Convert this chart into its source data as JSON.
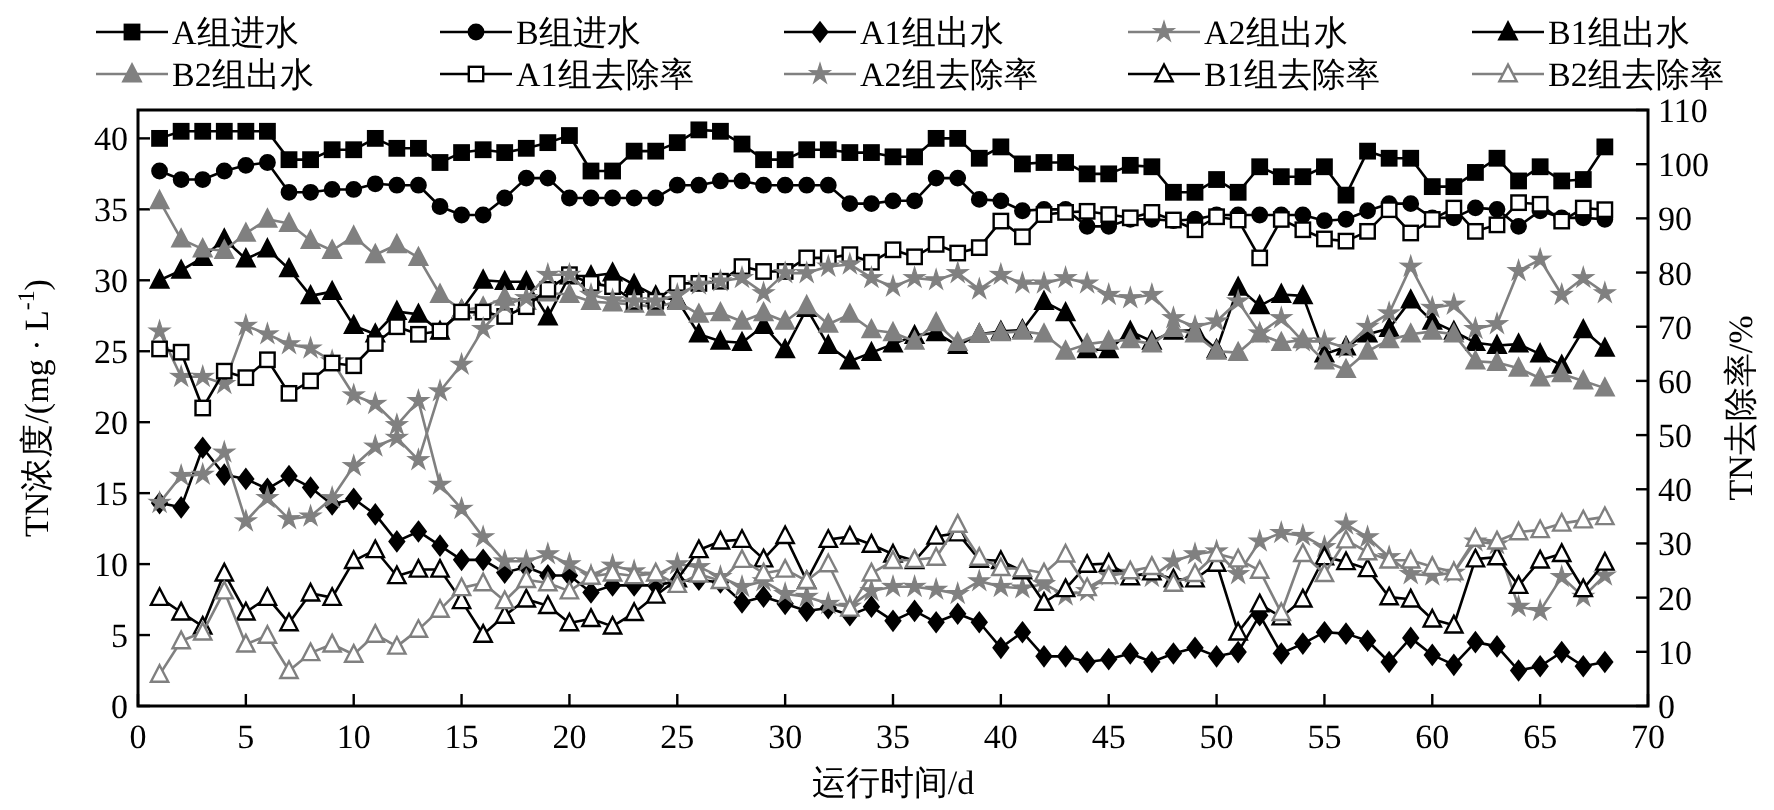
{
  "chart_data": {
    "type": "line",
    "xlabel": "运行时间/d",
    "ylabel": "TN浓度/(mg · L$^{-1}$)",
    "y2label": "TN去除率/%",
    "xlim": [
      0,
      70
    ],
    "xticks": [
      0,
      5,
      10,
      15,
      20,
      25,
      30,
      35,
      40,
      45,
      50,
      55,
      60,
      65,
      70
    ],
    "ylim": [
      0,
      42
    ],
    "yticks": [
      0,
      5,
      10,
      15,
      20,
      25,
      30,
      35,
      40
    ],
    "y2lim": [
      0,
      110
    ],
    "y2ticks": [
      0,
      10,
      20,
      30,
      40,
      50,
      60,
      70,
      80,
      90,
      100,
      110
    ],
    "legend": "top",
    "x": [
      1,
      2,
      3,
      4,
      5,
      6,
      7,
      8,
      9,
      10,
      11,
      12,
      13,
      14,
      15,
      16,
      17,
      18,
      19,
      20,
      21,
      22,
      23,
      24,
      25,
      26,
      27,
      28,
      29,
      30,
      31,
      32,
      33,
      34,
      35,
      36,
      37,
      38,
      39,
      40,
      41,
      42,
      43,
      44,
      45,
      46,
      47,
      48,
      49,
      50,
      51,
      52,
      53,
      54,
      55,
      56,
      57,
      58,
      59,
      60,
      61,
      62,
      63,
      64,
      65,
      66,
      67,
      68
    ],
    "series": [
      {
        "name": "A组进水",
        "color": "#000000",
        "marker": "square",
        "values": [
          40.0,
          40.5,
          40.5,
          40.5,
          40.5,
          40.5,
          38.5,
          38.5,
          39.2,
          39.2,
          40.0,
          39.3,
          39.3,
          38.3,
          39.0,
          39.2,
          39.0,
          39.3,
          39.7,
          40.2,
          37.7,
          37.7,
          39.1,
          39.1,
          39.7,
          40.6,
          40.5,
          39.6,
          38.5,
          38.5,
          39.2,
          39.2,
          39.0,
          39.0,
          38.7,
          38.7,
          40.0,
          40.0,
          38.6,
          39.4,
          38.2,
          38.3,
          38.3,
          37.5,
          37.5,
          38.1,
          38.0,
          36.2,
          36.2,
          37.1,
          36.2,
          38.0,
          37.3,
          37.3,
          38.0,
          36.0,
          39.1,
          38.6,
          38.6,
          36.6,
          36.6,
          37.6,
          38.6,
          37.0,
          38.0,
          37.0,
          37.1,
          39.4
        ]
      },
      {
        "name": "B组进水",
        "color": "#000000",
        "marker": "circle",
        "values": [
          37.7,
          37.1,
          37.1,
          37.7,
          38.1,
          38.3,
          36.2,
          36.2,
          36.4,
          36.4,
          36.8,
          36.7,
          36.7,
          35.2,
          34.6,
          34.6,
          35.8,
          37.2,
          37.2,
          35.8,
          35.8,
          35.8,
          35.8,
          35.8,
          36.7,
          36.7,
          37.0,
          37.0,
          36.7,
          36.7,
          36.7,
          36.7,
          35.4,
          35.4,
          35.6,
          35.6,
          37.2,
          37.2,
          35.7,
          35.6,
          34.9,
          35.0,
          35.0,
          33.8,
          33.8,
          34.3,
          34.3,
          34.2,
          34.3,
          34.6,
          34.6,
          34.6,
          34.6,
          34.6,
          34.2,
          34.3,
          34.9,
          35.4,
          35.4,
          34.4,
          34.4,
          35.1,
          35.0,
          33.8,
          34.9,
          34.4,
          34.4,
          34.3
        ]
      },
      {
        "name": "A1组出水",
        "color": "#000000",
        "marker": "diamond",
        "values": [
          14.3,
          14.0,
          18.2,
          16.3,
          16.0,
          15.3,
          16.2,
          15.4,
          14.2,
          14.6,
          13.5,
          11.6,
          12.3,
          11.3,
          10.3,
          10.3,
          9.4,
          9.8,
          9.2,
          9.2,
          8.0,
          8.5,
          8.5,
          8.5,
          8.8,
          8.9,
          8.7,
          7.3,
          7.7,
          7.2,
          6.7,
          6.9,
          6.4,
          7.0,
          6.0,
          6.7,
          5.9,
          6.5,
          5.9,
          4.1,
          5.2,
          3.5,
          3.5,
          3.1,
          3.3,
          3.7,
          3.1,
          3.7,
          4.1,
          3.5,
          3.8,
          6.4,
          3.7,
          4.4,
          5.2,
          5.1,
          4.6,
          3.1,
          4.8,
          3.6,
          2.9,
          4.5,
          4.2,
          2.5,
          2.8,
          3.8,
          2.8,
          3.1
        ]
      },
      {
        "name": "A2组出水",
        "color": "#808080",
        "marker": "star",
        "values": [
          26.4,
          23.2,
          23.2,
          22.7,
          26.8,
          26.2,
          25.5,
          25.2,
          24.3,
          21.9,
          21.3,
          19.8,
          21.5,
          15.6,
          13.9,
          11.9,
          10.2,
          10.2,
          10.7,
          10.0,
          9.2,
          9.9,
          9.5,
          9.2,
          10.0,
          9.8,
          9.1,
          8.4,
          8.8,
          7.9,
          7.7,
          7.2,
          7.0,
          8.1,
          8.4,
          8.4,
          8.2,
          7.9,
          8.8,
          8.4,
          8.3,
          8.6,
          7.8,
          8.1,
          9.2,
          9.4,
          9.1,
          10.2,
          10.7,
          10.9,
          9.3,
          11.6,
          12.2,
          12.0,
          11.2,
          12.8,
          11.9,
          10.5,
          9.3,
          9.2,
          9.4,
          11.6,
          11.4,
          7.0,
          6.7,
          9.1,
          7.7,
          9.2
        ]
      },
      {
        "name": "B1组出水",
        "color": "#000000",
        "marker": "triangle",
        "values": [
          30.0,
          30.7,
          31.6,
          32.9,
          31.5,
          32.2,
          30.8,
          28.9,
          29.2,
          26.8,
          26.2,
          27.8,
          27.6,
          26.4,
          27.9,
          30.0,
          29.9,
          29.9,
          27.4,
          30.3,
          30.3,
          30.5,
          29.7,
          28.9,
          28.6,
          26.2,
          25.7,
          25.6,
          26.8,
          25.1,
          28.0,
          25.4,
          24.3,
          24.9,
          25.5,
          26.1,
          26.3,
          25.4,
          26.2,
          26.4,
          26.5,
          28.5,
          27.7,
          25.1,
          25.1,
          26.4,
          25.7,
          26.4,
          26.5,
          25.1,
          29.5,
          28.2,
          29.0,
          28.9,
          24.8,
          25.3,
          26.2,
          26.6,
          28.6,
          27.1,
          26.4,
          25.6,
          25.4,
          25.5,
          24.8,
          24.0,
          26.5,
          25.2
        ]
      },
      {
        "name": "B2组出水",
        "color": "#808080",
        "marker": "triangle",
        "values": [
          35.6,
          32.9,
          32.2,
          32.1,
          33.3,
          34.3,
          34.0,
          32.8,
          32.1,
          33.1,
          31.8,
          32.5,
          31.6,
          29.0,
          27.9,
          28.1,
          28.8,
          28.5,
          29.1,
          29.0,
          28.5,
          28.4,
          28.3,
          28.1,
          28.5,
          27.6,
          27.7,
          27.1,
          27.7,
          27.1,
          28.2,
          26.9,
          27.6,
          26.5,
          26.3,
          25.7,
          27.0,
          25.6,
          26.2,
          26.3,
          26.4,
          26.2,
          25.0,
          25.5,
          25.7,
          25.8,
          25.5,
          26.6,
          26.2,
          25.0,
          24.9,
          26.2,
          25.6,
          25.8,
          24.3,
          23.7,
          25.0,
          25.8,
          26.2,
          26.4,
          26.2,
          24.3,
          24.2,
          23.8,
          23.1,
          23.4,
          22.9,
          22.4
        ]
      },
      {
        "name": "A1组去除率",
        "color": "#000000",
        "marker": "square",
        "axis": "y2",
        "values": [
          65.9,
          65.3,
          55.0,
          61.8,
          60.6,
          63.9,
          57.7,
          60.0,
          63.3,
          62.8,
          66.9,
          70.0,
          68.6,
          69.2,
          72.7,
          72.7,
          71.9,
          73.7,
          76.9,
          79.6,
          78.0,
          77.4,
          74.7,
          74.7,
          78.0,
          78.0,
          78.4,
          81.1,
          80.2,
          80.2,
          82.7,
          82.7,
          83.3,
          81.9,
          84.2,
          82.9,
          85.2,
          83.6,
          84.6,
          89.5,
          86.6,
          90.7,
          91.1,
          91.3,
          90.7,
          90.1,
          91.1,
          89.7,
          87.9,
          90.3,
          89.7,
          82.7,
          89.8,
          87.9,
          86.2,
          85.8,
          87.6,
          91.6,
          87.3,
          89.8,
          91.9,
          87.6,
          88.8,
          92.9,
          92.6,
          89.5,
          91.9,
          91.6
        ]
      },
      {
        "name": "A2组去除率",
        "color": "#808080",
        "marker": "star",
        "axis": "y2",
        "values": [
          37.5,
          42.5,
          42.7,
          46.8,
          34.1,
          38.4,
          34.5,
          35.0,
          38.4,
          44.3,
          47.9,
          49.5,
          45.4,
          58.1,
          63.0,
          69.6,
          74.1,
          75.3,
          79.6,
          79.6,
          75.9,
          74.9,
          74.7,
          74.7,
          75.9,
          77.8,
          78.4,
          79.0,
          76.2,
          79.9,
          79.9,
          81.1,
          81.5,
          79.0,
          77.4,
          79.0,
          78.6,
          79.9,
          76.9,
          79.6,
          78.0,
          78.0,
          79.0,
          78.0,
          75.9,
          75.3,
          75.9,
          71.6,
          70.0,
          71.0,
          74.7,
          68.8,
          71.6,
          67.3,
          67.3,
          66.1,
          70.0,
          72.5,
          81.1,
          73.5,
          74.1,
          69.6,
          70.5,
          80.3,
          82.4,
          75.9,
          79.0,
          76.2
        ]
      },
      {
        "name": "B1组去除率",
        "color": "#000000",
        "marker": "triangle",
        "axis": "y2",
        "values": [
          20.0,
          17.3,
          14.7,
          24.5,
          17.3,
          20.0,
          15.3,
          20.8,
          20.0,
          26.8,
          28.8,
          24.0,
          25.2,
          25.2,
          19.4,
          13.2,
          16.7,
          19.7,
          18.5,
          15.3,
          16.1,
          14.7,
          17.2,
          20.4,
          23.4,
          28.8,
          30.4,
          30.7,
          27.1,
          31.4,
          23.1,
          30.7,
          31.3,
          29.8,
          28.0,
          26.8,
          31.3,
          31.9,
          27.0,
          26.8,
          24.9,
          19.1,
          21.6,
          26.1,
          26.3,
          23.8,
          24.7,
          23.4,
          23.4,
          26.3,
          13.6,
          18.8,
          16.4,
          19.7,
          27.5,
          26.6,
          25.3,
          20.1,
          19.7,
          16.0,
          14.9,
          27.1,
          27.5,
          22.2,
          26.9,
          28.1,
          21.6,
          26.5
        ]
      },
      {
        "name": "B2组去除率",
        "color": "#808080",
        "marker": "triangle",
        "axis": "y2",
        "values": [
          5.8,
          12.0,
          13.6,
          21.2,
          11.4,
          13.0,
          6.5,
          9.8,
          11.4,
          9.5,
          13.2,
          11.0,
          14.1,
          17.8,
          21.8,
          22.7,
          19.4,
          23.3,
          22.7,
          21.2,
          23.9,
          24.5,
          24.0,
          24.5,
          22.4,
          24.3,
          23.1,
          27.0,
          24.5,
          25.2,
          23.1,
          26.2,
          18.0,
          24.5,
          26.8,
          27.0,
          27.4,
          33.5,
          27.4,
          25.5,
          25.3,
          24.5,
          28.0,
          21.8,
          24.0,
          24.9,
          25.7,
          22.6,
          24.4,
          28.1,
          27.1,
          25.0,
          17.2,
          28.1,
          24.4,
          30.6,
          28.4,
          26.9,
          26.9,
          25.7,
          24.7,
          30.9,
          30.4,
          32.1,
          32.5,
          33.7,
          34.3,
          34.9
        ]
      }
    ]
  }
}
